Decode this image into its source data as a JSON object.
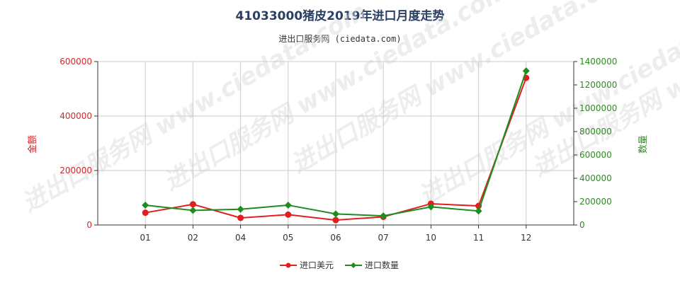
{
  "header": {
    "title": "41033000猪皮2019年进口月度走势",
    "subtitle": "进出口服务网 (ciedata.com)"
  },
  "watermark": "进出口服务网 www.ciedata.com",
  "colors": {
    "amount": "#e02020",
    "quantity": "#1e8c1e",
    "grid": "#cccccc"
  },
  "chart_data": {
    "type": "line",
    "categories": [
      "01",
      "02",
      "04",
      "05",
      "06",
      "07",
      "10",
      "11",
      "12"
    ],
    "series": [
      {
        "name": "进口美元",
        "axis": "left",
        "values": [
          45000,
          76000,
          26000,
          38000,
          18000,
          30000,
          78000,
          70000,
          540000
        ]
      },
      {
        "name": "进口数量",
        "axis": "right",
        "values": [
          170000,
          125000,
          135000,
          170000,
          95000,
          78000,
          155000,
          120000,
          1320000
        ]
      }
    ],
    "left_axis": {
      "label": "金额",
      "min": 0,
      "max": 600000,
      "ticks": [
        0,
        200000,
        400000,
        600000
      ],
      "tick_labels": [
        "0",
        "200000",
        "400000",
        "600000"
      ]
    },
    "right_axis": {
      "label": "数量",
      "min": 0,
      "max": 1400000,
      "ticks": [
        0,
        200000,
        400000,
        600000,
        800000,
        1000000,
        1200000,
        1400000
      ],
      "tick_labels": [
        "0",
        "200000",
        "400000",
        "600000",
        "800000",
        "1000000",
        "1200000",
        "1400000"
      ]
    },
    "grid": true,
    "legend_position": "bottom"
  }
}
